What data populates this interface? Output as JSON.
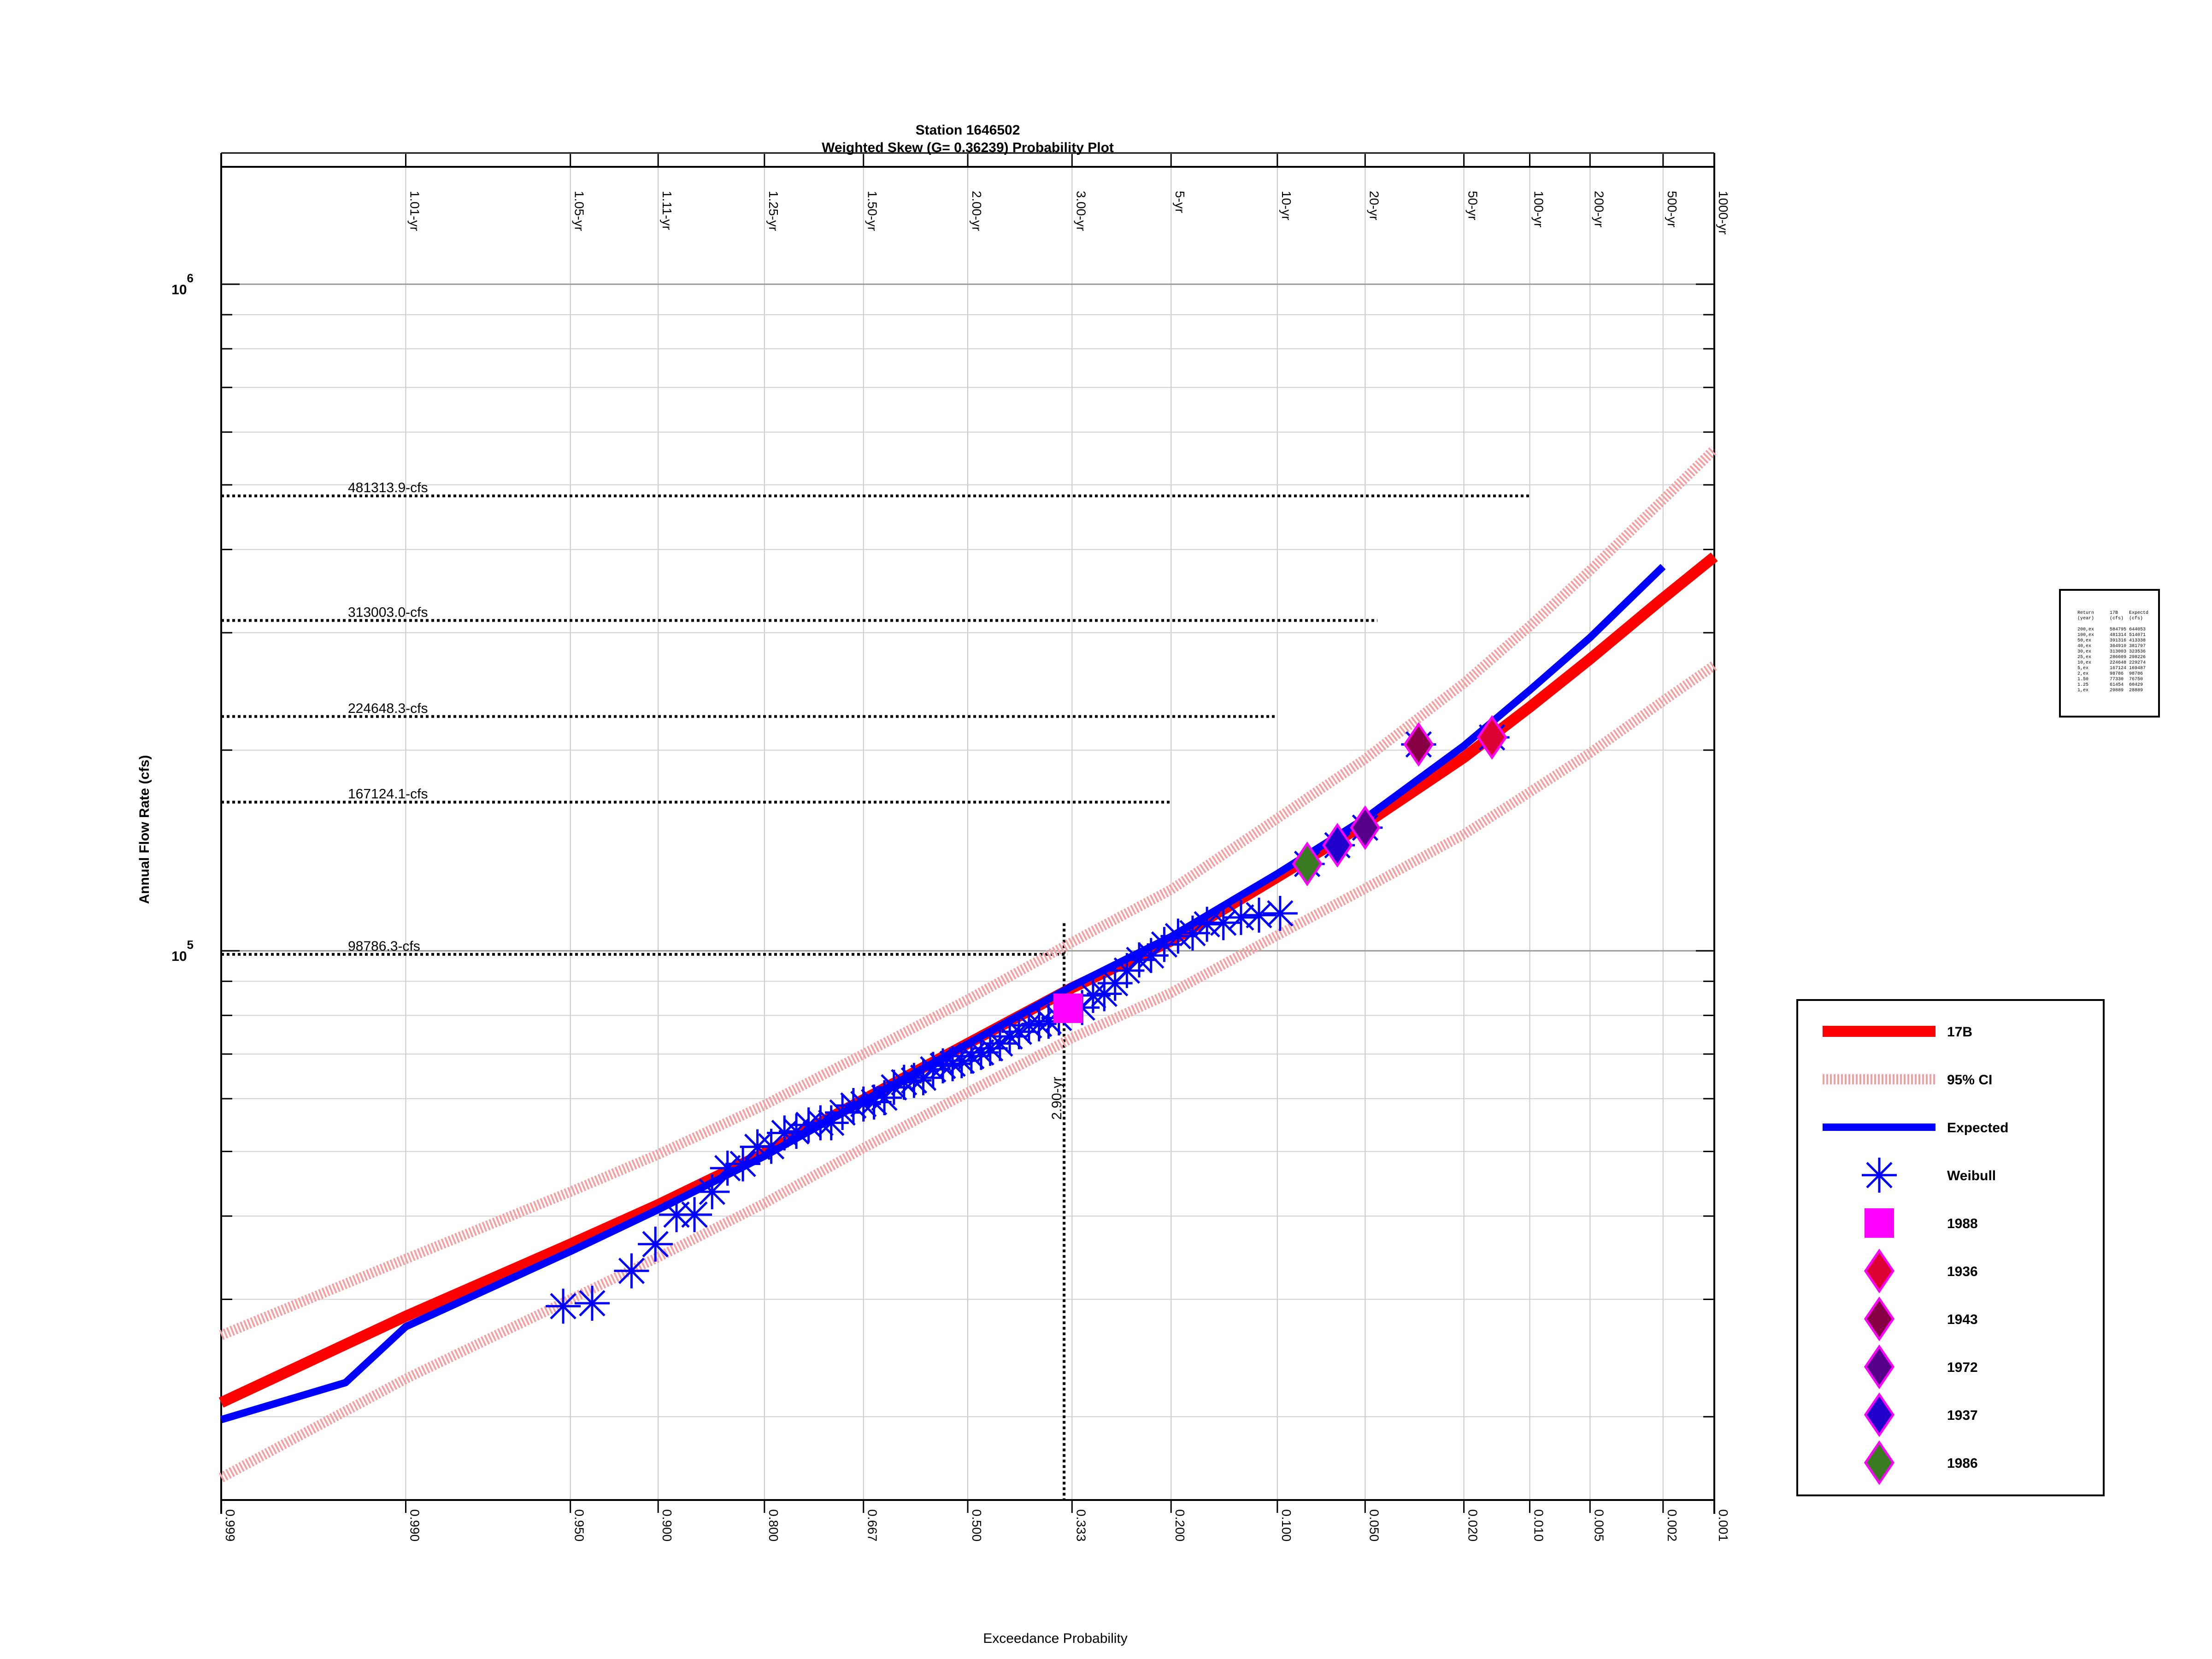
{
  "chart_data": {
    "type": "scatter",
    "title": "Station 1646502",
    "subtitle": "Weighted Skew (G= 0.36239) Probability Plot",
    "xlabel": "Exceedance Probability",
    "ylabel": "Annual Flow Rate (cfs)",
    "y_scale": "log",
    "x_scale": "normal-probability",
    "ylim": [
      15000,
      1500000
    ],
    "xlim": [
      0.999,
      0.001
    ],
    "grid": true,
    "legend_position": "right",
    "y_tick_labels": [
      {
        "value": 100000,
        "base": "10",
        "exp": "5"
      },
      {
        "value": 1000000,
        "base": "10",
        "exp": "6"
      }
    ],
    "x_tick_labels": [
      {
        "p": 0.999,
        "label": "0.999"
      },
      {
        "p": 0.99,
        "label": "0.990"
      },
      {
        "p": 0.95,
        "label": "0.950"
      },
      {
        "p": 0.9,
        "label": "0.900"
      },
      {
        "p": 0.8,
        "label": "0.800"
      },
      {
        "p": 0.667,
        "label": "0.667"
      },
      {
        "p": 0.5,
        "label": "0.500"
      },
      {
        "p": 0.333,
        "label": "0.333"
      },
      {
        "p": 0.2,
        "label": "0.200"
      },
      {
        "p": 0.1,
        "label": "0.100"
      },
      {
        "p": 0.05,
        "label": "0.050"
      },
      {
        "p": 0.02,
        "label": "0.020"
      },
      {
        "p": 0.01,
        "label": "0.010"
      },
      {
        "p": 0.005,
        "label": "0.005"
      },
      {
        "p": 0.002,
        "label": "0.002"
      },
      {
        "p": 0.001,
        "label": "0.001"
      }
    ],
    "return_period_labels": [
      {
        "p": 0.99,
        "label": "1.01-yr"
      },
      {
        "p": 0.95,
        "label": "1.05-yr"
      },
      {
        "p": 0.9,
        "label": "1.11-yr"
      },
      {
        "p": 0.8,
        "label": "1.25-yr"
      },
      {
        "p": 0.667,
        "label": "1.50-yr"
      },
      {
        "p": 0.5,
        "label": "2.00-yr"
      },
      {
        "p": 0.333,
        "label": "3.00-yr"
      },
      {
        "p": 0.2,
        "label": "5-yr"
      },
      {
        "p": 0.1,
        "label": "10-yr"
      },
      {
        "p": 0.05,
        "label": "20-yr"
      },
      {
        "p": 0.02,
        "label": "50-yr"
      },
      {
        "p": 0.01,
        "label": "100-yr"
      },
      {
        "p": 0.005,
        "label": "200-yr"
      },
      {
        "p": 0.002,
        "label": "500-yr"
      },
      {
        "p": 0.001,
        "label": "1000-yr"
      }
    ],
    "reference_lines": [
      {
        "label": "481313.9-cfs",
        "y": 481313.9,
        "x_end_p": 0.01
      },
      {
        "label": "313003.0-cfs",
        "y": 313003.0,
        "x_end_p": 0.045
      },
      {
        "label": "224648.3-cfs",
        "y": 224648.3,
        "x_end_p": 0.1
      },
      {
        "label": "167124.1-cfs",
        "y": 167124.1,
        "x_end_p": 0.2
      },
      {
        "label": "98786.3-cfs",
        "y": 98786.3,
        "x_end_p": 0.34
      }
    ],
    "vertical_marker": {
      "label": "2.90-yr",
      "p": 0.345,
      "y": 110000
    },
    "series": [
      {
        "name": "17B",
        "kind": "line",
        "color": "#ff0000",
        "x": [
          0.999,
          0.99,
          0.95,
          0.9,
          0.8,
          0.667,
          0.5,
          0.333,
          0.2,
          0.1,
          0.05,
          0.02,
          0.01,
          0.005,
          0.002,
          0.001
        ],
        "y": [
          21000,
          28300,
          36300,
          41600,
          49700,
          59800,
          72600,
          88000,
          103500,
          129000,
          155000,
          195000,
          232000,
          274000,
          338000,
          390000
        ]
      },
      {
        "name": "95% CI",
        "kind": "band",
        "color": "#f4a0a0",
        "x": [
          0.999,
          0.99,
          0.95,
          0.9,
          0.8,
          0.667,
          0.5,
          0.333,
          0.2,
          0.1,
          0.05,
          0.02,
          0.01,
          0.005,
          0.002,
          0.001
        ],
        "upper": [
          26500,
          34500,
          43500,
          49500,
          58700,
          70000,
          84500,
          103000,
          123500,
          158000,
          194000,
          252000,
          307000,
          372000,
          475000,
          565000
        ],
        "lower": [
          16200,
          22800,
          30000,
          34700,
          41800,
          50600,
          61300,
          74000,
          86500,
          105500,
          124000,
          149500,
          173000,
          198000,
          237000,
          268000
        ]
      },
      {
        "name": "Expected",
        "kind": "line",
        "color": "#0000ff",
        "x": [
          0.999,
          0.995,
          0.99,
          0.95,
          0.9,
          0.8,
          0.667,
          0.5,
          0.333,
          0.2,
          0.1,
          0.05,
          0.02,
          0.01,
          0.005,
          0.002
        ],
        "y": [
          19800,
          22500,
          27300,
          35400,
          40900,
          49200,
          59500,
          72500,
          88500,
          105000,
          130500,
          158000,
          203000,
          246000,
          295000,
          377000
        ]
      },
      {
        "name": "Weibull",
        "kind": "markers",
        "marker": "asterisk",
        "color": "#0000ff",
        "x": [
          0.953,
          0.94,
          0.918,
          0.902,
          0.886,
          0.871,
          0.855,
          0.84,
          0.824,
          0.808,
          0.792,
          0.776,
          0.761,
          0.745,
          0.729,
          0.714,
          0.698,
          0.682,
          0.667,
          0.651,
          0.635,
          0.62,
          0.604,
          0.588,
          0.573,
          0.557,
          0.541,
          0.525,
          0.51,
          0.494,
          0.478,
          0.463,
          0.447,
          0.431,
          0.416,
          0.4,
          0.384,
          0.369,
          0.353,
          0.318,
          0.302,
          0.286,
          0.271,
          0.255,
          0.239,
          0.224,
          0.208,
          0.192,
          0.176,
          0.161,
          0.145,
          0.129,
          0.114,
          0.098
        ],
        "y": [
          29300,
          29600,
          33100,
          36300,
          40200,
          40200,
          43500,
          47200,
          47900,
          50800,
          50900,
          53300,
          53600,
          54800,
          55200,
          55200,
          57200,
          58600,
          58900,
          59300,
          60200,
          62400,
          63500,
          63900,
          64500,
          66400,
          67200,
          67700,
          68400,
          69500,
          70400,
          71400,
          72600,
          74400,
          75600,
          77300,
          77700,
          78400,
          79300,
          82200,
          85700,
          86200,
          89400,
          93400,
          96900,
          98400,
          102200,
          105200,
          106300,
          109600,
          110200,
          112200,
          113100,
          113800
        ]
      },
      {
        "name": "1988",
        "kind": "markers",
        "marker": "square",
        "color": "#ff00ff",
        "x": [
          0.339
        ],
        "y": [
          82000
        ]
      },
      {
        "name": "1936",
        "kind": "markers",
        "marker": "diamond",
        "color": "#dd0033",
        "edge": "#ff00ff",
        "x": [
          0.015
        ],
        "y": [
          209000
        ]
      },
      {
        "name": "1943",
        "kind": "markers",
        "marker": "diamond",
        "color": "#880044",
        "edge": "#ff00ff",
        "x": [
          0.031
        ],
        "y": [
          204000
        ]
      },
      {
        "name": "1972",
        "kind": "markers",
        "marker": "diamond",
        "color": "#550088",
        "edge": "#ff00ff",
        "x": [
          0.05
        ],
        "y": [
          153000
        ]
      },
      {
        "name": "1937",
        "kind": "markers",
        "marker": "diamond",
        "color": "#2200cc",
        "edge": "#ff00ff",
        "x": [
          0.063
        ],
        "y": [
          144000
        ]
      },
      {
        "name": "1986",
        "kind": "markers",
        "marker": "diamond",
        "color": "#3a7a22",
        "edge": "#ff00ff",
        "x": [
          0.08
        ],
        "y": [
          135000
        ]
      }
    ]
  },
  "summary_table": {
    "header": [
      "Return",
      "17B",
      "Expectd"
    ],
    "subheader": [
      "(year)",
      "(cfs)",
      "(cfs)"
    ],
    "rows": [
      [
        "200,ex",
        "584795",
        "644053"
      ],
      [
        "100,ex",
        "481314",
        "514071"
      ],
      [
        "50,ex",
        "391316",
        "413338"
      ],
      [
        "40,ex",
        "364910",
        "381797"
      ],
      [
        "30,ex",
        "313003",
        "323536"
      ],
      [
        "25,ex",
        "286609",
        "298226"
      ],
      [
        "10,ex",
        "224648",
        "229274"
      ],
      [
        "5,ex",
        "167124",
        "169487"
      ],
      [
        "2,ex",
        "98786",
        "98786"
      ],
      [
        "1.50",
        "77330",
        "76750"
      ],
      [
        "1.25",
        "61454",
        "60429"
      ],
      [
        "1,ex",
        "29889",
        "28889"
      ]
    ]
  }
}
